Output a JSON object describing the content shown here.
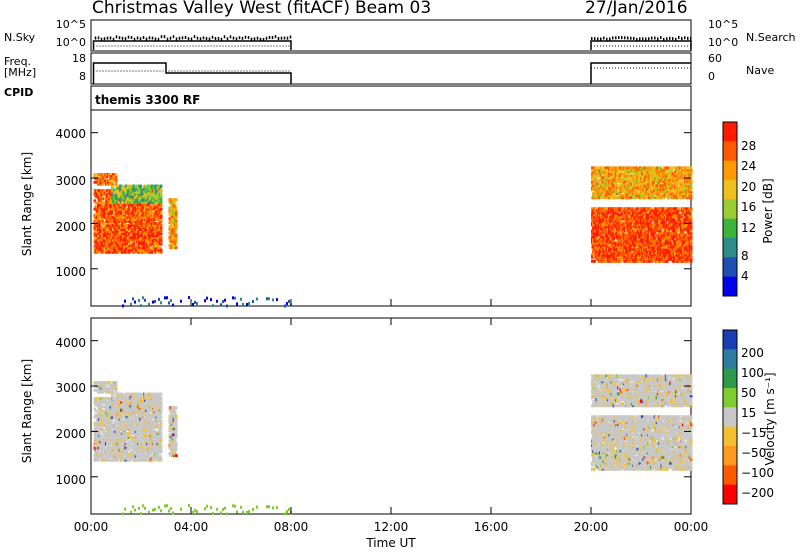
{
  "header": {
    "station": "Christmas Valley West (fitACF)",
    "beam": "Beam 03",
    "date": "27/Jan/2016"
  },
  "sky_panel": {
    "left_label": "N.Sky",
    "left_ticks": [
      "10^5",
      "10^0"
    ],
    "right_label": "N.Search",
    "right_ticks": [
      "10^5",
      "10^0"
    ]
  },
  "freq_panel": {
    "left_label_1": "Freq.",
    "left_label_2": "[MHz]",
    "left_ticks": [
      "18",
      "8"
    ],
    "right_label": "Nave",
    "right_ticks": [
      "60",
      "0"
    ]
  },
  "cpid_panel": {
    "label": "CPID",
    "program": "themis 3300 RF"
  },
  "power_panel": {
    "ylabel": "Slant Range [km]",
    "yticks": [
      "4000",
      "3000",
      "2000",
      "1000"
    ],
    "colorbar_label": "Power [dB]",
    "colorbar_ticks": [
      "28",
      "24",
      "20",
      "16",
      "12",
      "8",
      "4"
    ],
    "colors": [
      "#0000ee",
      "#1e50b4",
      "#2e8b8b",
      "#3cb43c",
      "#9acd32",
      "#f0c020",
      "#ff9a00",
      "#ff5a00",
      "#ff1a00"
    ]
  },
  "velocity_panel": {
    "ylabel": "Slant Range [km]",
    "yticks": [
      "4000",
      "3000",
      "2000",
      "1000"
    ],
    "colorbar_label": "Velocity [m s⁻¹]",
    "colorbar_ticks": [
      "200",
      "100",
      "50",
      "15",
      "−15",
      "−50",
      "−100",
      "−200"
    ],
    "colors": [
      "#1a3cb4",
      "#2e7da0",
      "#2e9a4c",
      "#7fcc30",
      "#c8c8c8",
      "#f5c030",
      "#ff9a20",
      "#ff5a00",
      "#ff0000"
    ]
  },
  "xaxis": {
    "label": "Time UT",
    "ticks": [
      "00:00",
      "04:00",
      "08:00",
      "12:00",
      "16:00",
      "20:00",
      "00:00"
    ]
  },
  "chart_data": {
    "type": "heatmap",
    "x_range_hours": [
      0,
      24
    ],
    "y_range_km": [
      180,
      4500
    ],
    "data_gap_hours": [
      8,
      20
    ],
    "series": [
      {
        "name": "Power",
        "unit": "dB",
        "range": [
          0,
          32
        ]
      },
      {
        "name": "Velocity",
        "unit": "m s⁻¹",
        "range": [
          -250,
          250
        ]
      }
    ],
    "features": [
      {
        "time_start": 0.1,
        "time_end": 1.0,
        "range_km": [
          2900,
          3150
        ],
        "power_db": 26
      },
      {
        "time_start": 0.1,
        "time_end": 2.8,
        "range_km": [
          1400,
          2800
        ],
        "power_db": 27
      },
      {
        "time_start": 0.8,
        "time_end": 2.8,
        "range_km": [
          2500,
          2900
        ],
        "power_db": 14
      },
      {
        "time_start": 3.1,
        "time_end": 3.4,
        "range_km": [
          1500,
          2600
        ],
        "power_db": 22
      },
      {
        "time_start": 20.0,
        "time_end": 24.0,
        "range_km": [
          1200,
          2400
        ],
        "power_db": 28
      },
      {
        "time_start": 20.0,
        "time_end": 24.0,
        "range_km": [
          2600,
          3300
        ],
        "power_db": 22
      }
    ]
  }
}
